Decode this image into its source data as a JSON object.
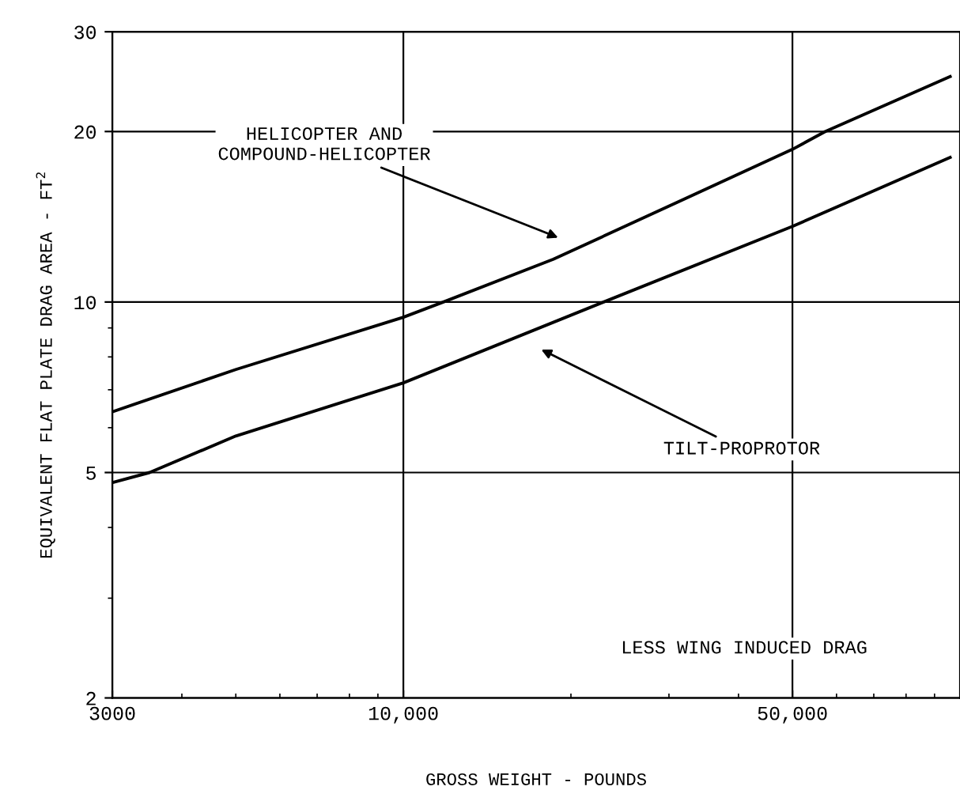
{
  "chart_data": {
    "type": "line",
    "xlabel": "GROSS WEIGHT - POUNDS",
    "ylabel": "EQUIVALENT FLAT PLATE DRAG AREA - FT$^{2}$",
    "log": "xy",
    "grid": true,
    "legend": false,
    "line_style": "solid",
    "marker": "none",
    "xlim": [
      3000,
      100000
    ],
    "xticks": [
      {
        "value": 3000,
        "label": "3000"
      },
      {
        "value": 10000,
        "label": "10,000"
      },
      {
        "value": 50000,
        "label": "50,000"
      }
    ],
    "ylim": [
      2,
      30
    ],
    "yticks": [
      2,
      5,
      10,
      20,
      30
    ],
    "series": [
      {
        "color": "#000000",
        "x": [
          3000,
          5000,
          10000,
          11800,
          18600,
          50000,
          57300,
          96000
        ],
        "values": [
          6.4,
          7.6,
          9.4,
          10,
          11.9,
          18.6,
          20,
          25
        ]
      },
      {
        "color": "#000000",
        "x": [
          3000,
          3500,
          5000,
          10000,
          22900,
          50000,
          96000
        ],
        "values": [
          4.8,
          5,
          5.8,
          7.2,
          10,
          13.6,
          18
        ]
      }
    ],
    "annotations": [
      "HELICOPTER AND\nCOMPOUND-HELICOPTER",
      "TILT-PROPROTOR",
      "LESS WING INDUCED DRAG"
    ]
  }
}
